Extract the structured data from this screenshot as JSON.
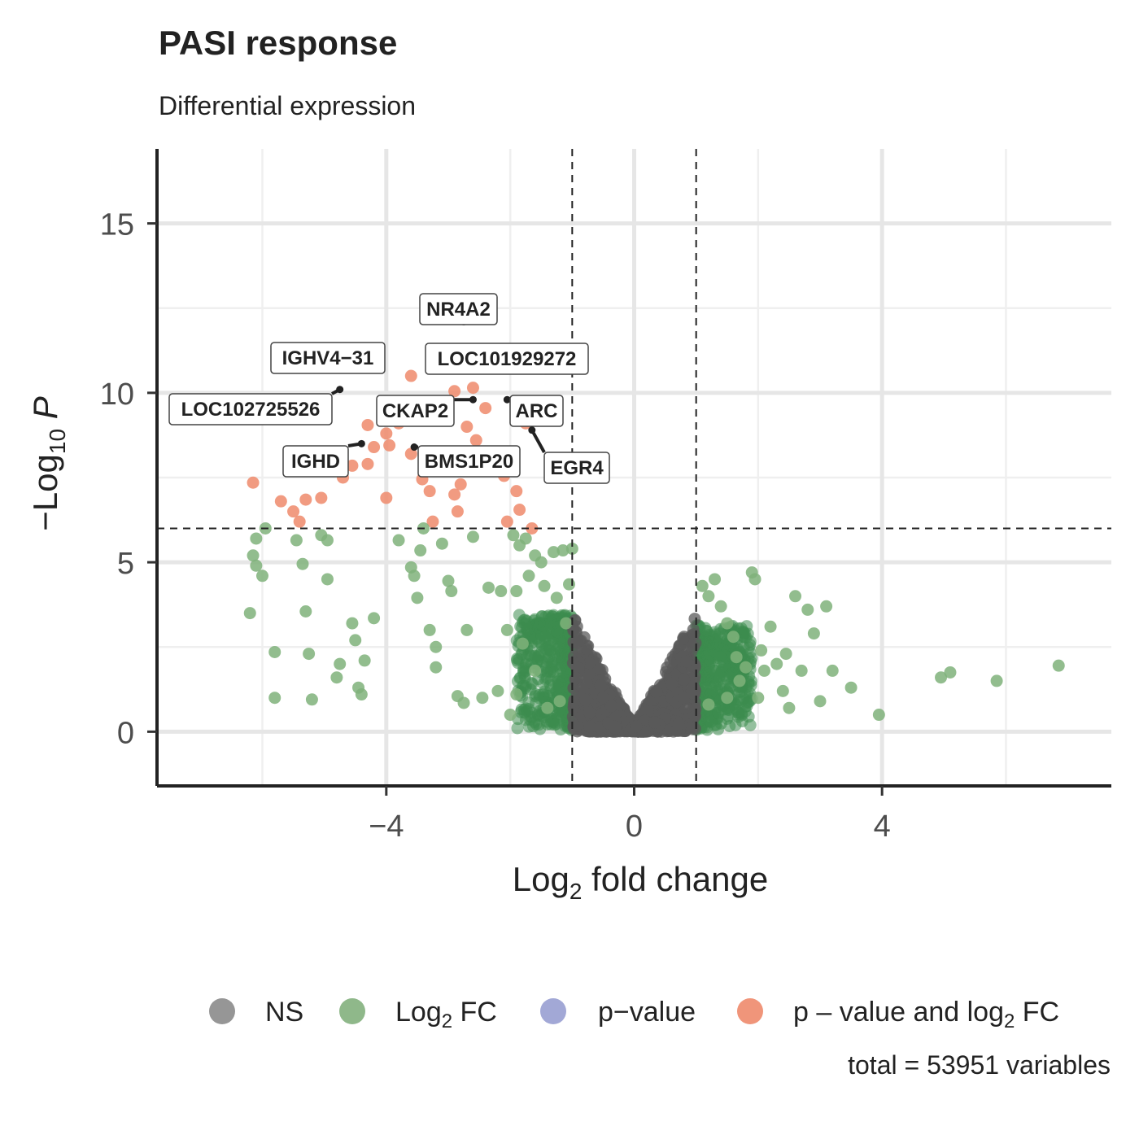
{
  "chart_data": {
    "type": "scatter",
    "title": "PASI response",
    "subtitle": "Differential expression",
    "xlabel": {
      "prefix": "Log",
      "sub": "2",
      "suffix": " fold change"
    },
    "ylabel": {
      "prefix": "−Log",
      "sub": "10",
      "suffix": "P"
    },
    "xlim": [
      -7.7,
      7.7
    ],
    "ylim": [
      -1.6,
      17.2
    ],
    "x_ticks": [
      -4,
      0,
      4
    ],
    "x_tick_labels": [
      "−4",
      "0",
      "4"
    ],
    "y_ticks": [
      0,
      5,
      10,
      15
    ],
    "y_tick_labels": [
      "0",
      "5",
      "10",
      "15"
    ],
    "grid": true,
    "cutoffs": {
      "log2fc": [
        -1,
        1
      ],
      "neglog10p": 6
    },
    "colors": {
      "NS": "#969696",
      "Log2FC": "#7fb27a",
      "pvalue": "#9aa3d3",
      "both": "#ef8a6b",
      "ns_dense": "#5a5a5a",
      "fc_dense": "#3c8c4f"
    },
    "series": [
      {
        "name": "p−value and log2 FC",
        "points": [
          [
            -6.15,
            7.35
          ],
          [
            -5.7,
            6.8
          ],
          [
            -5.5,
            6.5
          ],
          [
            -5.4,
            6.2
          ],
          [
            -5.3,
            6.85
          ],
          [
            -5.05,
            6.9
          ],
          [
            -4.7,
            7.5
          ],
          [
            -4.3,
            9.05
          ],
          [
            -4.2,
            8.4
          ],
          [
            -4.0,
            8.8
          ],
          [
            -3.95,
            8.45
          ],
          [
            -3.8,
            9.1
          ],
          [
            -3.6,
            10.5
          ],
          [
            -3.5,
            9.55
          ],
          [
            -3.42,
            7.45
          ],
          [
            -3.35,
            7.75
          ],
          [
            -3.3,
            7.1
          ],
          [
            -3.25,
            6.2
          ],
          [
            -3.0,
            7.75
          ],
          [
            -2.9,
            7.0
          ],
          [
            -2.85,
            6.5
          ],
          [
            -2.8,
            7.3
          ],
          [
            -2.7,
            9.0
          ],
          [
            -2.9,
            10.05
          ],
          [
            -2.6,
            10.15
          ],
          [
            -2.4,
            9.55
          ],
          [
            -2.1,
            7.55
          ],
          [
            -1.9,
            7.1
          ],
          [
            -1.85,
            6.55
          ],
          [
            -2.05,
            6.2
          ],
          [
            -1.65,
            6.0
          ],
          [
            -4.3,
            7.9
          ],
          [
            -3.6,
            8.2
          ],
          [
            -4.0,
            6.9
          ],
          [
            -4.55,
            7.85
          ],
          [
            -2.55,
            8.6
          ],
          [
            -1.75,
            9.1
          ],
          [
            -3.3,
            8.1
          ]
        ]
      },
      {
        "name": "Log2 FC",
        "points": [
          [
            -6.1,
            5.7
          ],
          [
            -6.15,
            5.2
          ],
          [
            -6.1,
            4.9
          ],
          [
            -6.0,
            4.6
          ],
          [
            -5.95,
            6.0
          ],
          [
            -6.2,
            3.5
          ],
          [
            -5.8,
            2.35
          ],
          [
            -5.8,
            1.0
          ],
          [
            -5.45,
            5.65
          ],
          [
            -5.35,
            4.95
          ],
          [
            -5.3,
            3.55
          ],
          [
            -5.25,
            2.3
          ],
          [
            -5.2,
            0.95
          ],
          [
            -5.05,
            5.8
          ],
          [
            -4.95,
            5.65
          ],
          [
            -4.95,
            4.5
          ],
          [
            -4.75,
            2.0
          ],
          [
            -4.8,
            1.6
          ],
          [
            -4.55,
            3.2
          ],
          [
            -4.5,
            2.7
          ],
          [
            -4.45,
            1.3
          ],
          [
            -4.4,
            1.1
          ],
          [
            -4.35,
            2.1
          ],
          [
            -4.2,
            3.35
          ],
          [
            -3.8,
            5.65
          ],
          [
            -3.6,
            4.85
          ],
          [
            -3.55,
            4.6
          ],
          [
            -3.5,
            3.95
          ],
          [
            -3.45,
            5.35
          ],
          [
            -3.4,
            6.0
          ],
          [
            -3.3,
            3.0
          ],
          [
            -3.2,
            2.5
          ],
          [
            -3.2,
            1.9
          ],
          [
            -3.1,
            5.55
          ],
          [
            -3.0,
            4.45
          ],
          [
            -2.95,
            4.15
          ],
          [
            -2.85,
            1.05
          ],
          [
            -2.75,
            0.85
          ],
          [
            -2.7,
            3.0
          ],
          [
            -2.6,
            5.75
          ],
          [
            -2.45,
            1.0
          ],
          [
            -2.35,
            4.25
          ],
          [
            -2.2,
            1.2
          ],
          [
            -2.15,
            4.15
          ],
          [
            -2.05,
            3.0
          ],
          [
            -1.95,
            5.8
          ],
          [
            -1.9,
            4.15
          ],
          [
            -1.85,
            5.5
          ],
          [
            -1.8,
            2.6
          ],
          [
            -1.75,
            5.7
          ],
          [
            -1.7,
            4.6
          ],
          [
            -1.6,
            5.2
          ],
          [
            -1.5,
            5.0
          ],
          [
            -1.45,
            4.3
          ],
          [
            -1.3,
            5.3
          ],
          [
            -1.25,
            3.95
          ],
          [
            -1.15,
            5.35
          ],
          [
            -1.05,
            4.35
          ],
          [
            -1.1,
            3.2
          ],
          [
            -1.0,
            5.4
          ],
          [
            -1.9,
            1.1
          ],
          [
            -2.0,
            0.5
          ],
          [
            -1.6,
            1.8
          ],
          [
            1.1,
            4.3
          ],
          [
            1.2,
            4.0
          ],
          [
            1.3,
            4.5
          ],
          [
            1.4,
            3.7
          ],
          [
            1.5,
            3.2
          ],
          [
            1.6,
            2.8
          ],
          [
            1.65,
            2.2
          ],
          [
            1.8,
            1.9
          ],
          [
            1.9,
            4.7
          ],
          [
            1.95,
            4.5
          ],
          [
            2.0,
            1.0
          ],
          [
            2.05,
            2.4
          ],
          [
            2.1,
            1.8
          ],
          [
            2.2,
            3.1
          ],
          [
            2.3,
            2.0
          ],
          [
            2.4,
            1.2
          ],
          [
            2.45,
            2.3
          ],
          [
            2.5,
            0.7
          ],
          [
            2.6,
            4.0
          ],
          [
            2.7,
            1.8
          ],
          [
            2.8,
            3.6
          ],
          [
            2.9,
            2.9
          ],
          [
            3.0,
            0.9
          ],
          [
            3.1,
            3.7
          ],
          [
            3.2,
            1.8
          ],
          [
            3.5,
            1.3
          ],
          [
            3.95,
            0.5
          ],
          [
            4.95,
            1.6
          ],
          [
            5.1,
            1.75
          ],
          [
            5.85,
            1.5
          ],
          [
            6.85,
            1.95
          ],
          [
            1.2,
            0.8
          ],
          [
            1.5,
            1.0
          ],
          [
            1.7,
            1.5
          ],
          [
            -1.2,
            0.9
          ],
          [
            -1.4,
            0.7
          ]
        ]
      }
    ],
    "labels": [
      {
        "text": "NR4A2",
        "x": -2.75,
        "y": 12.1
      },
      {
        "text": "IGHV4−31",
        "x": -4.1,
        "y": 10.9
      },
      {
        "text": "LOC101929272",
        "x": -2.35,
        "y": 10.75
      },
      {
        "text": "LOC102725526",
        "x": -4.75,
        "y": 10.1
      },
      {
        "text": "CKAP2",
        "x": -2.6,
        "y": 9.8
      },
      {
        "text": "ARC",
        "x": -2.05,
        "y": 9.8
      },
      {
        "text": "IGHD",
        "x": -4.4,
        "y": 8.5
      },
      {
        "text": "BMS1P20",
        "x": -3.55,
        "y": 8.4
      },
      {
        "text": "EGR4",
        "x": -1.65,
        "y": 8.9
      }
    ],
    "legend": {
      "position": "bottom",
      "entries": [
        {
          "key": "NS",
          "label": "NS",
          "color": "#969696"
        },
        {
          "key": "Log2FC",
          "label": [
            "Log",
            "2",
            " FC"
          ],
          "color": "#8fb88a"
        },
        {
          "key": "pvalue",
          "label": "p−value",
          "color": "#a2a8d6"
        },
        {
          "key": "both",
          "label": [
            "p – value and log",
            "2",
            " FC"
          ],
          "color": "#f0957a"
        }
      ]
    },
    "caption": "total = 53951 variables"
  }
}
